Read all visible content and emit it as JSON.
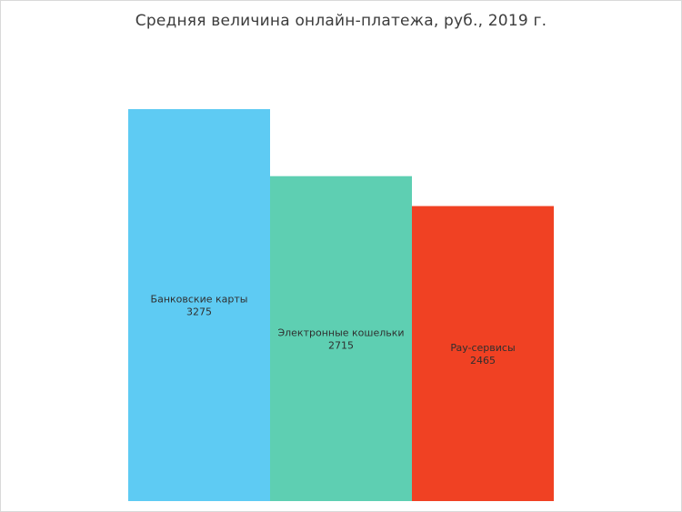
{
  "chart_data": {
    "type": "bar",
    "title": "Средняя величина онлайн-платежа, руб., 2019 г.",
    "categories": [
      "Банковские карты",
      "Электронные кошельки",
      "Pay-сервисы"
    ],
    "values": [
      3275,
      2715,
      2465
    ],
    "value_labels": [
      "3275",
      "2715",
      "2465"
    ],
    "colors": [
      "#5ecbf3",
      "#5ecfb2",
      "#f04123"
    ],
    "ylim": [
      0,
      3275
    ],
    "grid": false,
    "legend": "none",
    "xlabel": "",
    "ylabel": ""
  }
}
